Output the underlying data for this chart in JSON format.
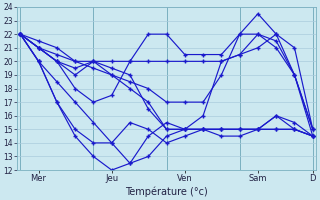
{
  "title": "",
  "xlabel": "Température (°c)",
  "background_color": "#cce8f0",
  "grid_color": "#aaccdd",
  "line_color": "#1a1acc",
  "xtick_labels": [
    "Mer",
    "",
    "Jeu",
    "",
    "Ven",
    "",
    "Sam",
    "",
    "D"
  ],
  "xtick_positions": [
    0,
    12,
    24,
    36,
    48,
    60,
    72,
    84,
    96
  ],
  "xtick_display": [
    "Mer",
    "Jeu",
    "Ven",
    "Sam",
    "D"
  ],
  "xtick_display_pos": [
    6,
    30,
    54,
    78,
    96
  ],
  "ylim": [
    12,
    24
  ],
  "xlim": [
    -1,
    97
  ],
  "yticks": [
    12,
    13,
    14,
    15,
    16,
    17,
    18,
    19,
    20,
    21,
    22,
    23,
    24
  ],
  "vlines": [
    0,
    24,
    48,
    72,
    96
  ],
  "series": [
    {
      "x": [
        0,
        6,
        12,
        18,
        24,
        30,
        36,
        42,
        48,
        54,
        60,
        66,
        72,
        78,
        84,
        90,
        96
      ],
      "y": [
        22,
        21,
        20,
        18,
        17,
        17.5,
        20,
        22,
        22,
        20.5,
        20.5,
        20.5,
        22,
        23.5,
        22,
        19,
        15
      ]
    },
    {
      "x": [
        0,
        6,
        12,
        18,
        24,
        30,
        36,
        42,
        48,
        54,
        60,
        66,
        72,
        78,
        84,
        90,
        96
      ],
      "y": [
        22,
        20,
        17,
        15,
        14,
        14,
        15.5,
        15,
        14,
        14.5,
        15,
        15,
        15,
        15,
        16,
        15,
        14.5
      ]
    },
    {
      "x": [
        0,
        6,
        12,
        18,
        24,
        30,
        36,
        42,
        48,
        54,
        60,
        66,
        72,
        78,
        84,
        90,
        96
      ],
      "y": [
        22,
        21,
        20,
        19,
        20,
        19,
        18,
        17,
        15,
        15,
        16,
        20,
        20.5,
        22,
        21.5,
        19,
        15
      ]
    },
    {
      "x": [
        0,
        6,
        12,
        18,
        24,
        30,
        36,
        42,
        48,
        54,
        60,
        66,
        72,
        78,
        84,
        90,
        96
      ],
      "y": [
        22,
        20,
        18.5,
        17,
        15.5,
        14,
        12.5,
        13,
        14.5,
        15,
        15,
        15,
        15,
        15,
        15,
        15,
        14.5
      ]
    },
    {
      "x": [
        0,
        6,
        12,
        18,
        24,
        30,
        36,
        42,
        48,
        54,
        60,
        66,
        72,
        78,
        84,
        90,
        96
      ],
      "y": [
        22,
        21.5,
        21,
        20,
        20,
        20,
        20,
        20,
        20,
        20,
        20,
        20,
        20.5,
        21,
        22,
        21,
        15
      ]
    },
    {
      "x": [
        0,
        6,
        12,
        18,
        24,
        30,
        36,
        42,
        48,
        54,
        60,
        66,
        72,
        78,
        84,
        90,
        96
      ],
      "y": [
        22,
        21,
        20,
        19.5,
        20,
        19.5,
        19,
        16.5,
        15,
        15,
        15,
        15,
        15,
        15,
        15,
        15,
        14.5
      ]
    },
    {
      "x": [
        0,
        6,
        12,
        18,
        24,
        30,
        36,
        42,
        48,
        54,
        60,
        66,
        72,
        78,
        84,
        90,
        96
      ],
      "y": [
        22,
        21,
        20.5,
        20,
        19.5,
        19,
        18.5,
        18,
        17,
        17,
        17,
        19,
        22,
        22,
        21,
        19,
        14.5
      ]
    },
    {
      "x": [
        0,
        6,
        12,
        18,
        24,
        30,
        36,
        42,
        48,
        54,
        60,
        66,
        72,
        78,
        84,
        90,
        96
      ],
      "y": [
        22,
        20,
        17,
        14.5,
        13,
        12,
        12.5,
        14.5,
        15.5,
        15,
        15,
        14.5,
        14.5,
        15,
        16,
        15.5,
        14.5
      ]
    }
  ]
}
